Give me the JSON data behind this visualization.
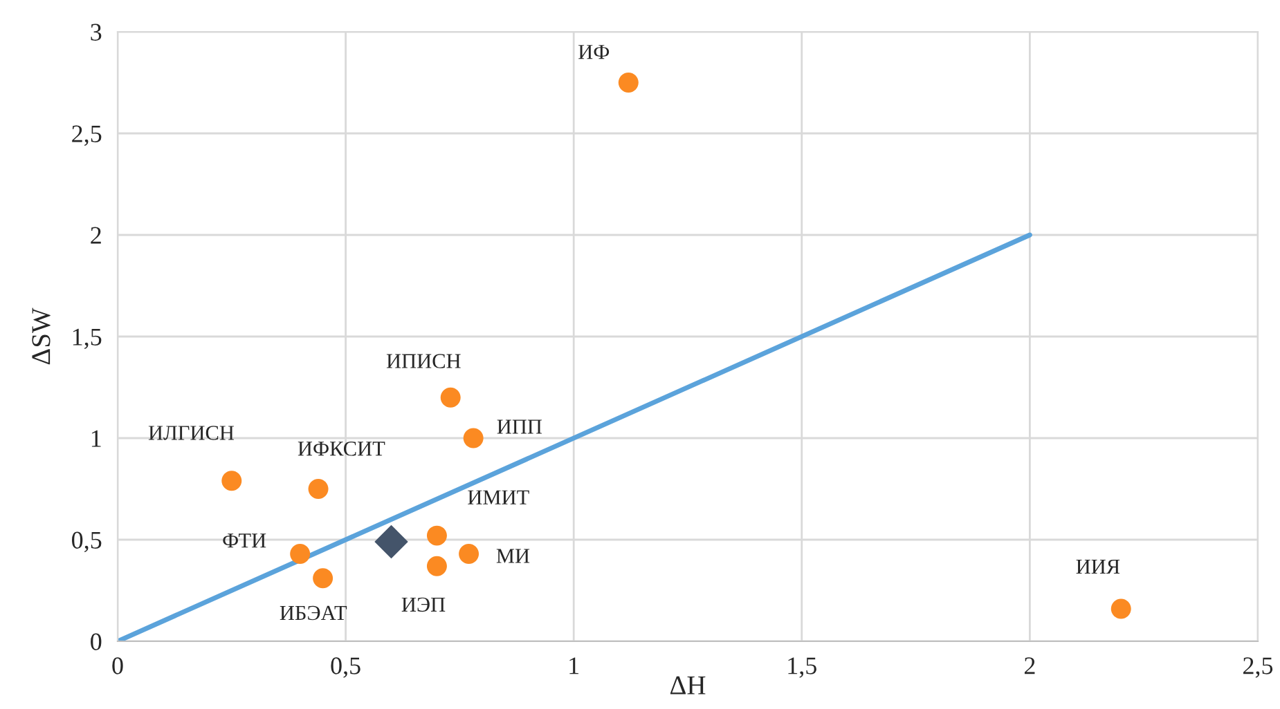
{
  "chart_data": {
    "type": "scatter",
    "xlabel": "ΔH",
    "ylabel": "ΔSW",
    "series": [
      {
        "type": "line",
        "color": "#5ba3db",
        "x": [
          0,
          2
        ],
        "values": [
          0,
          2
        ],
        "marker": "none"
      },
      {
        "color": "#fb8a22",
        "marker": "circle",
        "x": [
          1.12,
          0.73,
          0.78,
          0.25,
          0.44,
          0.7,
          0.4,
          0.45,
          0.7,
          0.77,
          2.2
        ],
        "values": [
          2.75,
          1.2,
          1.0,
          0.79,
          0.75,
          0.52,
          0.43,
          0.31,
          0.37,
          0.43,
          0.16
        ]
      },
      {
        "color": "#44546a",
        "marker": "diamond",
        "x": [
          0.6
        ],
        "values": [
          0.49
        ]
      }
    ],
    "annotations": [
      {
        "text": "ИФ",
        "x": 1.12,
        "y": 2.75
      },
      {
        "text": "ИПИСН",
        "x": 0.73,
        "y": 1.2
      },
      {
        "text": "ИПП",
        "x": 0.78,
        "y": 1.0
      },
      {
        "text": "ИЛГИСН",
        "x": 0.25,
        "y": 0.79
      },
      {
        "text": "ИФКСИТ",
        "x": 0.44,
        "y": 0.75
      },
      {
        "text": "ИМИТ",
        "x": 0.7,
        "y": 0.52
      },
      {
        "text": "ФТИ",
        "x": 0.4,
        "y": 0.43
      },
      {
        "text": "ИБЭАТ",
        "x": 0.45,
        "y": 0.31
      },
      {
        "text": "ИЭП",
        "x": 0.7,
        "y": 0.37
      },
      {
        "text": "МИ",
        "x": 0.77,
        "y": 0.43
      },
      {
        "text": "ИИЯ",
        "x": 2.2,
        "y": 0.16
      }
    ],
    "xlim": [
      0,
      2.5
    ],
    "xticks": [
      0,
      {
        "value": 0.5,
        "label": "0,5"
      },
      1,
      {
        "value": 1.5,
        "label": "1,5"
      },
      2,
      {
        "value": 2.5,
        "label": "2,5"
      }
    ],
    "ylim": [
      0,
      3
    ],
    "yticks": [
      0,
      {
        "value": 0.5,
        "label": "0,5"
      },
      1,
      {
        "value": 1.5,
        "label": "1,5"
      },
      2,
      {
        "value": 2.5,
        "label": "2,5"
      },
      3
    ],
    "grid": true,
    "legend": false
  }
}
